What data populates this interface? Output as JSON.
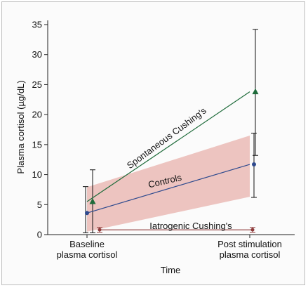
{
  "chart_data": {
    "type": "line",
    "xlabel": "Time",
    "ylabel": "Plasma cortisol (µg/dL)",
    "ylim": [
      0,
      35
    ],
    "yticks": [
      0,
      5,
      10,
      15,
      20,
      25,
      30,
      35
    ],
    "categories": [
      "Baseline\nplasma cortisol",
      "Post stimulation\nplasma cortisol"
    ],
    "legend": "none",
    "grid": false,
    "series": [
      {
        "name": "Spontaneous Cushing's",
        "values": [
          5.5,
          23.8
        ],
        "error_low": [
          0.3,
          13.2
        ],
        "error_high": [
          10.8,
          34.2
        ],
        "marker": "triangle",
        "color": "#1e6b3a"
      },
      {
        "name": "Controls",
        "values": [
          3.6,
          11.7
        ],
        "error_low": [
          0.3,
          6.2
        ],
        "error_high": [
          8.0,
          16.9
        ],
        "marker": "circle",
        "color": "#2e4a8e"
      },
      {
        "name": "Iatrogenic Cushing's",
        "values": [
          0.8,
          0.8
        ],
        "error_low": [
          0.4,
          0.4
        ],
        "error_high": [
          1.2,
          1.2
        ],
        "marker": "circle",
        "color": "#8e3b3b"
      }
    ],
    "band": {
      "lower": [
        0.5,
        6.3
      ],
      "upper": [
        7.9,
        16.5
      ],
      "color": "#e8b1ac"
    },
    "series_label_positions": [
      "along-line",
      "along-line",
      "above-line"
    ]
  }
}
